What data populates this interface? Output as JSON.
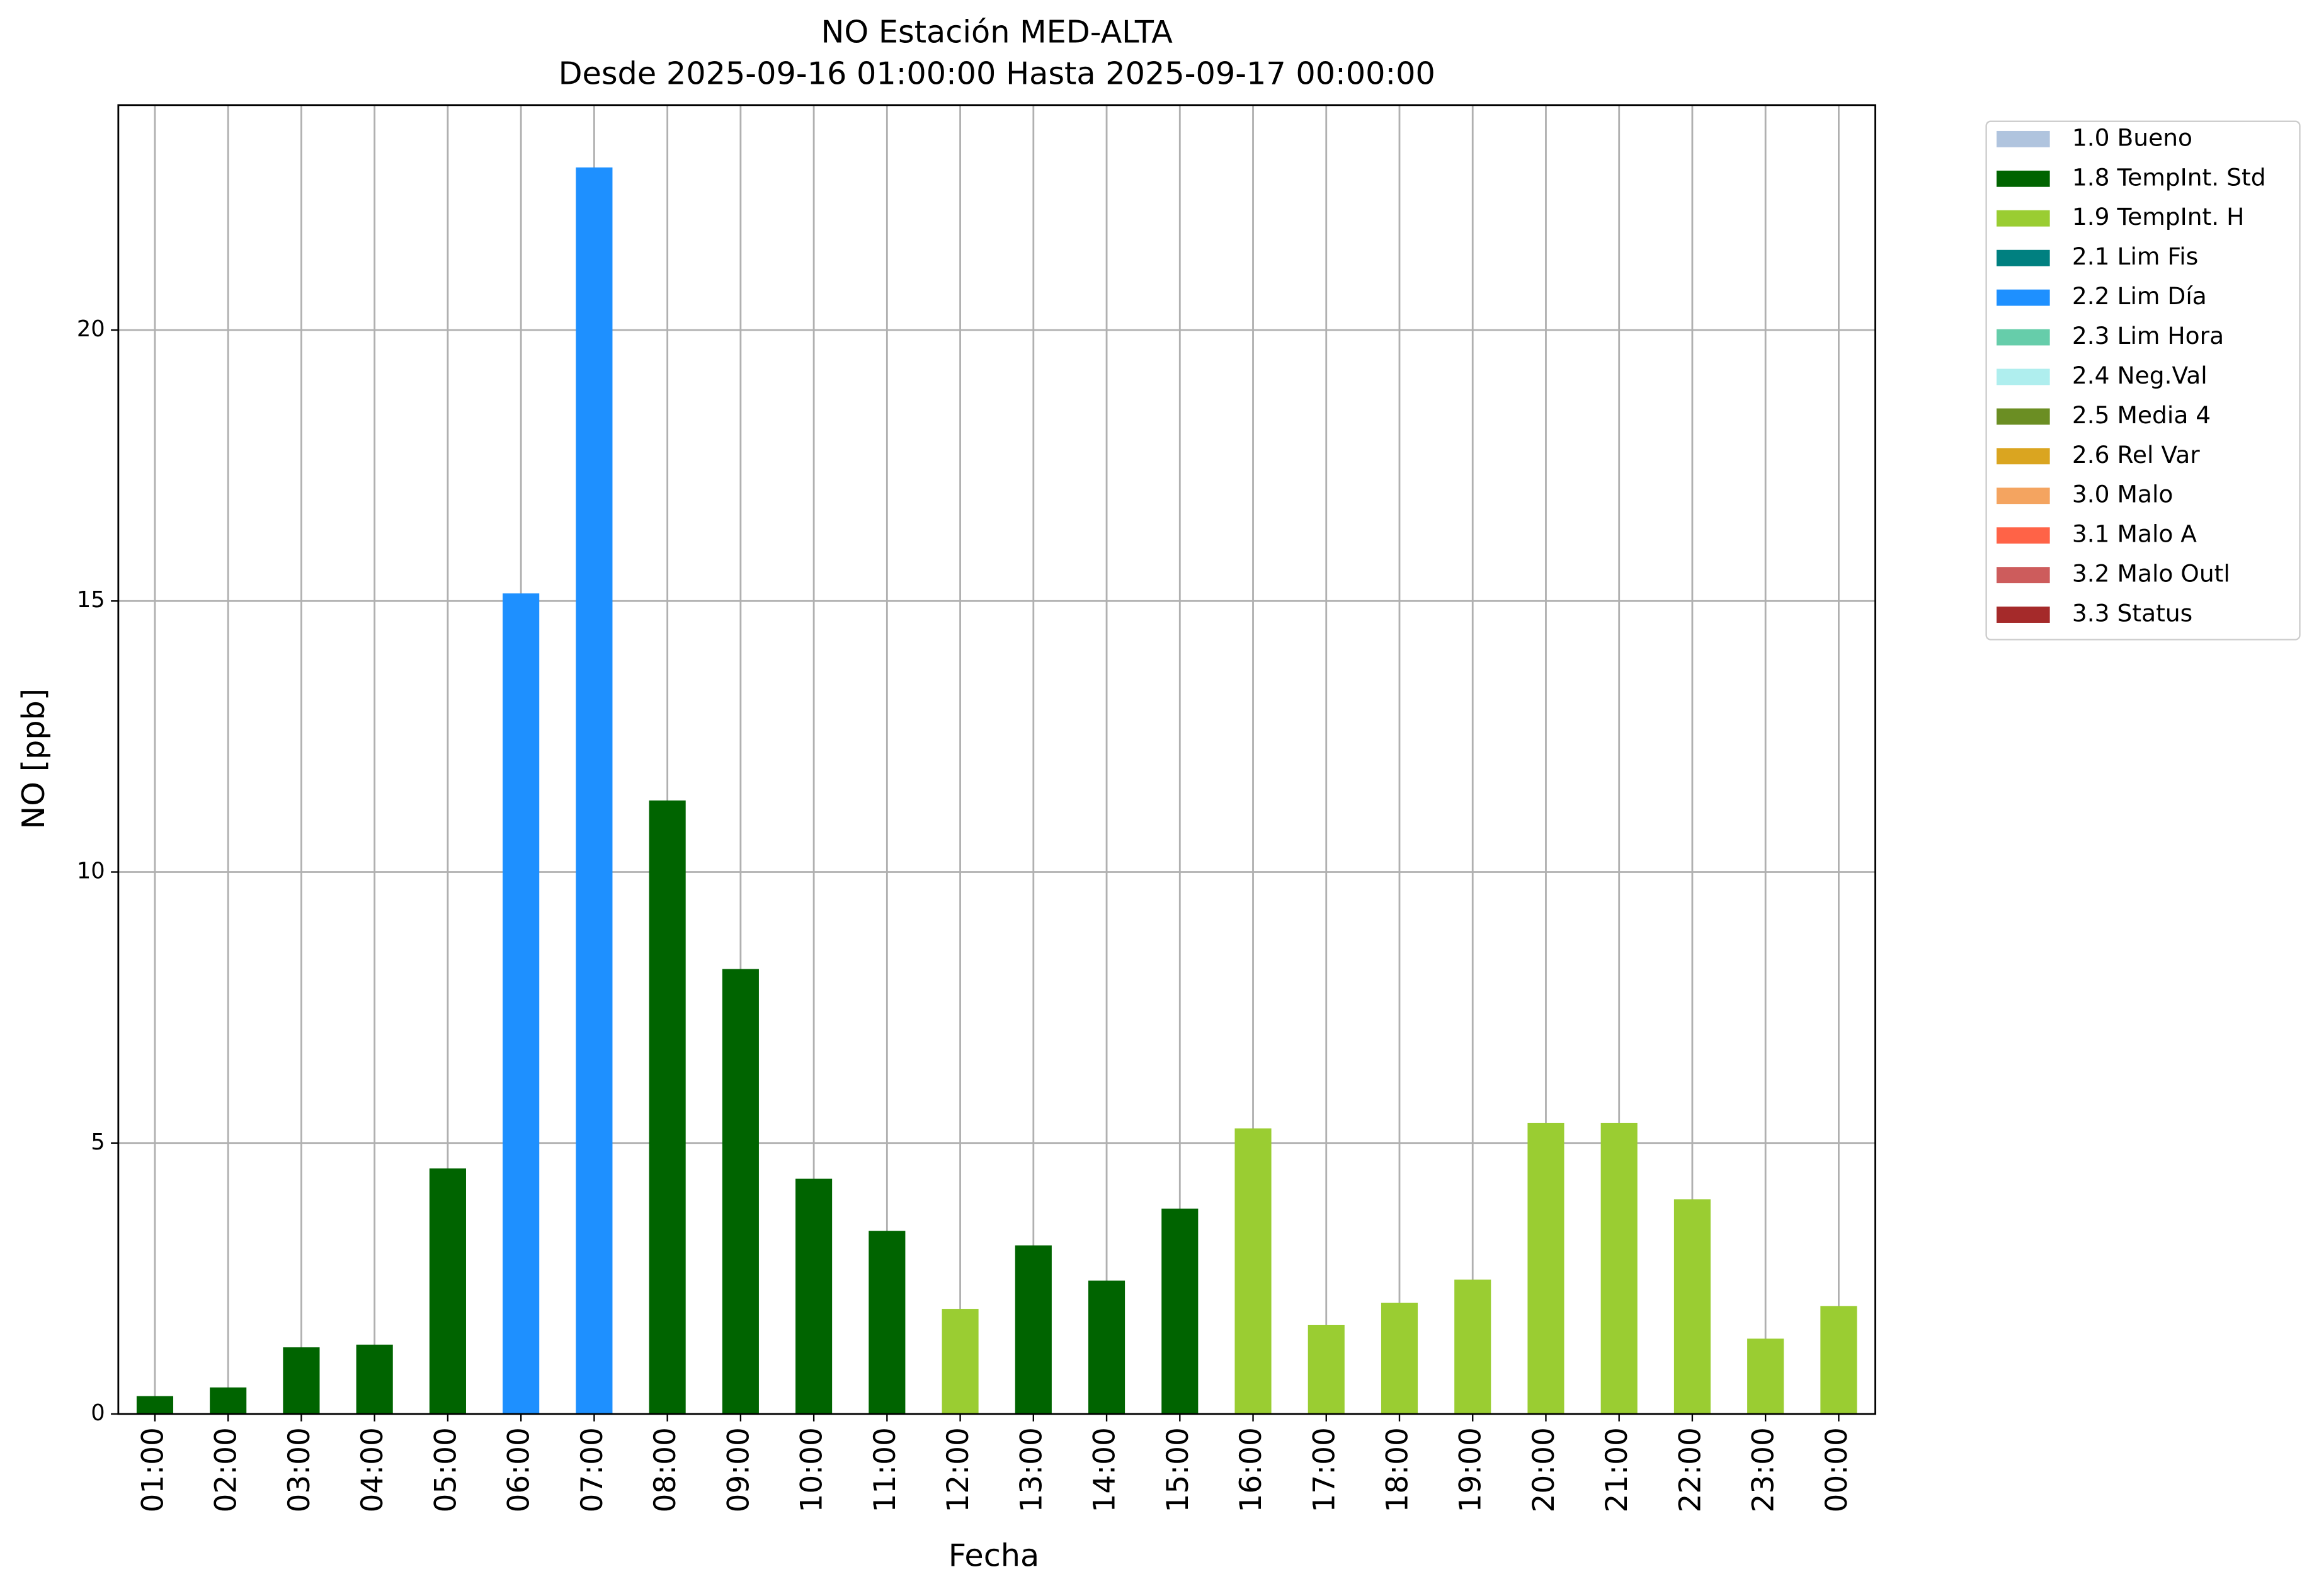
{
  "chart_data": {
    "type": "bar",
    "stacked": true,
    "title": "NO Estación MED-ALTA",
    "subtitle": "Desde 2025-09-16 01:00:00 Hasta 2025-09-17 00:00:00",
    "x_label": "Fecha",
    "y_label": "NO [ppb]",
    "categories": [
      "01:00",
      "02:00",
      "03:00",
      "04:00",
      "05:00",
      "06:00",
      "07:00",
      "08:00",
      "09:00",
      "10:00",
      "11:00",
      "12:00",
      "13:00",
      "14:00",
      "15:00",
      "16:00",
      "17:00",
      "18:00",
      "19:00",
      "20:00",
      "21:00",
      "22:00",
      "23:00",
      "00:00"
    ],
    "series": [
      {
        "name": "1.0 Bueno",
        "color": "#b0c4de",
        "values": [
          null,
          null,
          null,
          null,
          null,
          null,
          null,
          null,
          null,
          null,
          null,
          null,
          null,
          null,
          null,
          null,
          null,
          null,
          null,
          null,
          null,
          null,
          null,
          null
        ]
      },
      {
        "name": "1.8 TempInt. Std",
        "color": "#006400",
        "values": [
          0.33,
          0.49,
          1.23,
          1.28,
          4.53,
          null,
          null,
          11.32,
          8.21,
          4.34,
          3.38,
          null,
          3.11,
          2.46,
          3.79,
          null,
          null,
          null,
          null,
          null,
          null,
          null,
          null,
          null
        ]
      },
      {
        "name": "1.9 TempInt. H",
        "color": "#9acd32",
        "values": [
          null,
          null,
          null,
          null,
          null,
          null,
          null,
          null,
          null,
          null,
          null,
          1.94,
          null,
          null,
          null,
          5.27,
          1.64,
          2.05,
          2.48,
          5.37,
          5.37,
          3.96,
          1.39,
          1.99
        ]
      },
      {
        "name": "2.1 Lim Fis",
        "color": "#008080",
        "values": [
          null,
          null,
          null,
          null,
          null,
          null,
          null,
          null,
          null,
          null,
          null,
          null,
          null,
          null,
          null,
          null,
          null,
          null,
          null,
          null,
          null,
          null,
          null,
          null
        ]
      },
      {
        "name": "2.2 Lim Día",
        "color": "#1e90ff",
        "values": [
          null,
          null,
          null,
          null,
          null,
          15.14,
          23.0,
          null,
          null,
          null,
          null,
          null,
          null,
          null,
          null,
          null,
          null,
          null,
          null,
          null,
          null,
          null,
          null,
          null
        ]
      },
      {
        "name": "2.3 Lim Hora",
        "color": "#66cdaa",
        "values": [
          null,
          null,
          null,
          null,
          null,
          null,
          null,
          null,
          null,
          null,
          null,
          null,
          null,
          null,
          null,
          null,
          null,
          null,
          null,
          null,
          null,
          null,
          null,
          null
        ]
      },
      {
        "name": "2.4 Neg.Val",
        "color": "#afeeee",
        "values": [
          null,
          null,
          null,
          null,
          null,
          null,
          null,
          null,
          null,
          null,
          null,
          null,
          null,
          null,
          null,
          null,
          null,
          null,
          null,
          null,
          null,
          null,
          null,
          null
        ]
      },
      {
        "name": "2.5 Media 4",
        "color": "#6b8e23",
        "values": [
          null,
          null,
          null,
          null,
          null,
          null,
          null,
          null,
          null,
          null,
          null,
          null,
          null,
          null,
          null,
          null,
          null,
          null,
          null,
          null,
          null,
          null,
          null,
          null
        ]
      },
      {
        "name": "2.6 Rel Var",
        "color": "#daa520",
        "values": [
          null,
          null,
          null,
          null,
          null,
          null,
          null,
          null,
          null,
          null,
          null,
          null,
          null,
          null,
          null,
          null,
          null,
          null,
          null,
          null,
          null,
          null,
          null,
          null
        ]
      },
      {
        "name": "3.0 Malo",
        "color": "#f4a460",
        "values": [
          null,
          null,
          null,
          null,
          null,
          null,
          null,
          null,
          null,
          null,
          null,
          null,
          null,
          null,
          null,
          null,
          null,
          null,
          null,
          null,
          null,
          null,
          null,
          null
        ]
      },
      {
        "name": "3.1 Malo A",
        "color": "#ff6347",
        "values": [
          null,
          null,
          null,
          null,
          null,
          null,
          null,
          null,
          null,
          null,
          null,
          null,
          null,
          null,
          null,
          null,
          null,
          null,
          null,
          null,
          null,
          null,
          null,
          null
        ]
      },
      {
        "name": "3.2 Malo Outl",
        "color": "#cd5c5c",
        "values": [
          null,
          null,
          null,
          null,
          null,
          null,
          null,
          null,
          null,
          null,
          null,
          null,
          null,
          null,
          null,
          null,
          null,
          null,
          null,
          null,
          null,
          null,
          null,
          null
        ]
      },
      {
        "name": "3.3 Status",
        "color": "#a52a2a",
        "values": [
          null,
          null,
          null,
          null,
          null,
          null,
          null,
          null,
          null,
          null,
          null,
          null,
          null,
          null,
          null,
          null,
          null,
          null,
          null,
          null,
          null,
          null,
          null,
          null
        ]
      }
    ],
    "ylim": [
      0,
      24.15
    ],
    "yticks": [
      0,
      5,
      10,
      15,
      20
    ],
    "grid": true,
    "legend": "outside-right"
  }
}
